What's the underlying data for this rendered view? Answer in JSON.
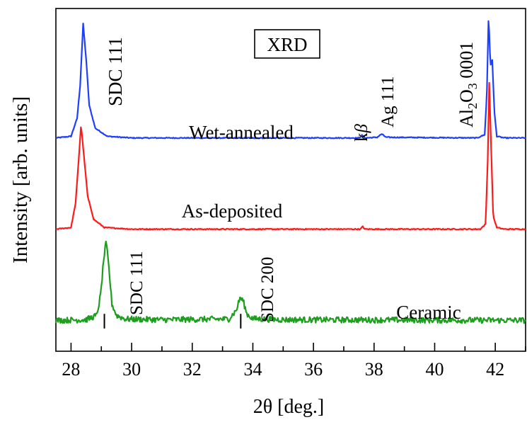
{
  "chart_data": {
    "type": "line",
    "title": "XRD",
    "xlabel": "2θ [deg.]",
    "ylabel": "Intensity [arb. units]",
    "xlim": [
      27.5,
      43
    ],
    "x_ticks": [
      28,
      30,
      32,
      34,
      36,
      38,
      40,
      42
    ],
    "x_minor_step": 1,
    "y_ticks_shown": false,
    "grid": false,
    "series": [
      {
        "name": "Wet-annealed",
        "color": "#1f3fff",
        "baseline": 0.62,
        "points": [
          [
            27.5,
            0.62
          ],
          [
            28.0,
            0.625
          ],
          [
            28.2,
            0.68
          ],
          [
            28.3,
            0.78
          ],
          [
            28.4,
            0.97
          ],
          [
            28.5,
            0.86
          ],
          [
            28.6,
            0.72
          ],
          [
            28.8,
            0.65
          ],
          [
            29.2,
            0.625
          ],
          [
            30,
            0.62
          ],
          [
            34,
            0.62
          ],
          [
            37.5,
            0.62
          ],
          [
            37.6,
            0.628
          ],
          [
            37.7,
            0.62
          ],
          [
            38.1,
            0.622
          ],
          [
            38.25,
            0.632
          ],
          [
            38.4,
            0.622
          ],
          [
            41.4,
            0.62
          ],
          [
            41.65,
            0.63
          ],
          [
            41.72,
            0.75
          ],
          [
            41.78,
            1.0
          ],
          [
            41.84,
            0.84
          ],
          [
            41.9,
            0.86
          ],
          [
            41.97,
            0.7
          ],
          [
            42.05,
            0.625
          ],
          [
            42.3,
            0.62
          ],
          [
            43,
            0.62
          ]
        ]
      },
      {
        "name": "As-deposited",
        "color": "#ff1a1a",
        "baseline": 0.34,
        "points": [
          [
            27.5,
            0.34
          ],
          [
            28.0,
            0.345
          ],
          [
            28.15,
            0.42
          ],
          [
            28.25,
            0.55
          ],
          [
            28.33,
            0.66
          ],
          [
            28.43,
            0.56
          ],
          [
            28.55,
            0.44
          ],
          [
            28.75,
            0.37
          ],
          [
            29.1,
            0.345
          ],
          [
            30,
            0.34
          ],
          [
            37.55,
            0.34
          ],
          [
            37.62,
            0.348
          ],
          [
            37.7,
            0.34
          ],
          [
            41.5,
            0.34
          ],
          [
            41.68,
            0.355
          ],
          [
            41.75,
            0.55
          ],
          [
            41.8,
            0.79
          ],
          [
            41.86,
            0.6
          ],
          [
            41.93,
            0.38
          ],
          [
            42.05,
            0.345
          ],
          [
            42.3,
            0.34
          ],
          [
            43,
            0.34
          ]
        ]
      },
      {
        "name": "Ceramic",
        "color": "#1e9e1e",
        "baseline": 0.06,
        "points": [
          [
            27.5,
            0.06
          ],
          [
            28.5,
            0.062
          ],
          [
            28.85,
            0.075
          ],
          [
            28.98,
            0.14
          ],
          [
            29.08,
            0.25
          ],
          [
            29.16,
            0.3
          ],
          [
            29.25,
            0.22
          ],
          [
            29.35,
            0.11
          ],
          [
            29.5,
            0.075
          ],
          [
            29.8,
            0.064
          ],
          [
            31,
            0.062
          ],
          [
            33.2,
            0.064
          ],
          [
            33.45,
            0.09
          ],
          [
            33.58,
            0.13
          ],
          [
            33.68,
            0.12
          ],
          [
            33.8,
            0.08
          ],
          [
            34.0,
            0.065
          ],
          [
            35,
            0.062
          ],
          [
            43,
            0.06
          ]
        ]
      }
    ],
    "reference_marks": [
      {
        "x": 29.1,
        "label": "SDC 111"
      },
      {
        "x": 33.6,
        "label": "SDC 200"
      }
    ],
    "annotations": [
      {
        "id": "sdc111_top",
        "text": "SDC 111"
      },
      {
        "id": "kbeta",
        "text_main": "k",
        "text_greek": "β"
      },
      {
        "id": "ag111",
        "text": "Ag 111"
      },
      {
        "id": "al2o3",
        "text_base": "Al",
        "sub1": "2",
        "text_mid": "O",
        "sub2": "3",
        "text_end": " 0001"
      }
    ]
  }
}
